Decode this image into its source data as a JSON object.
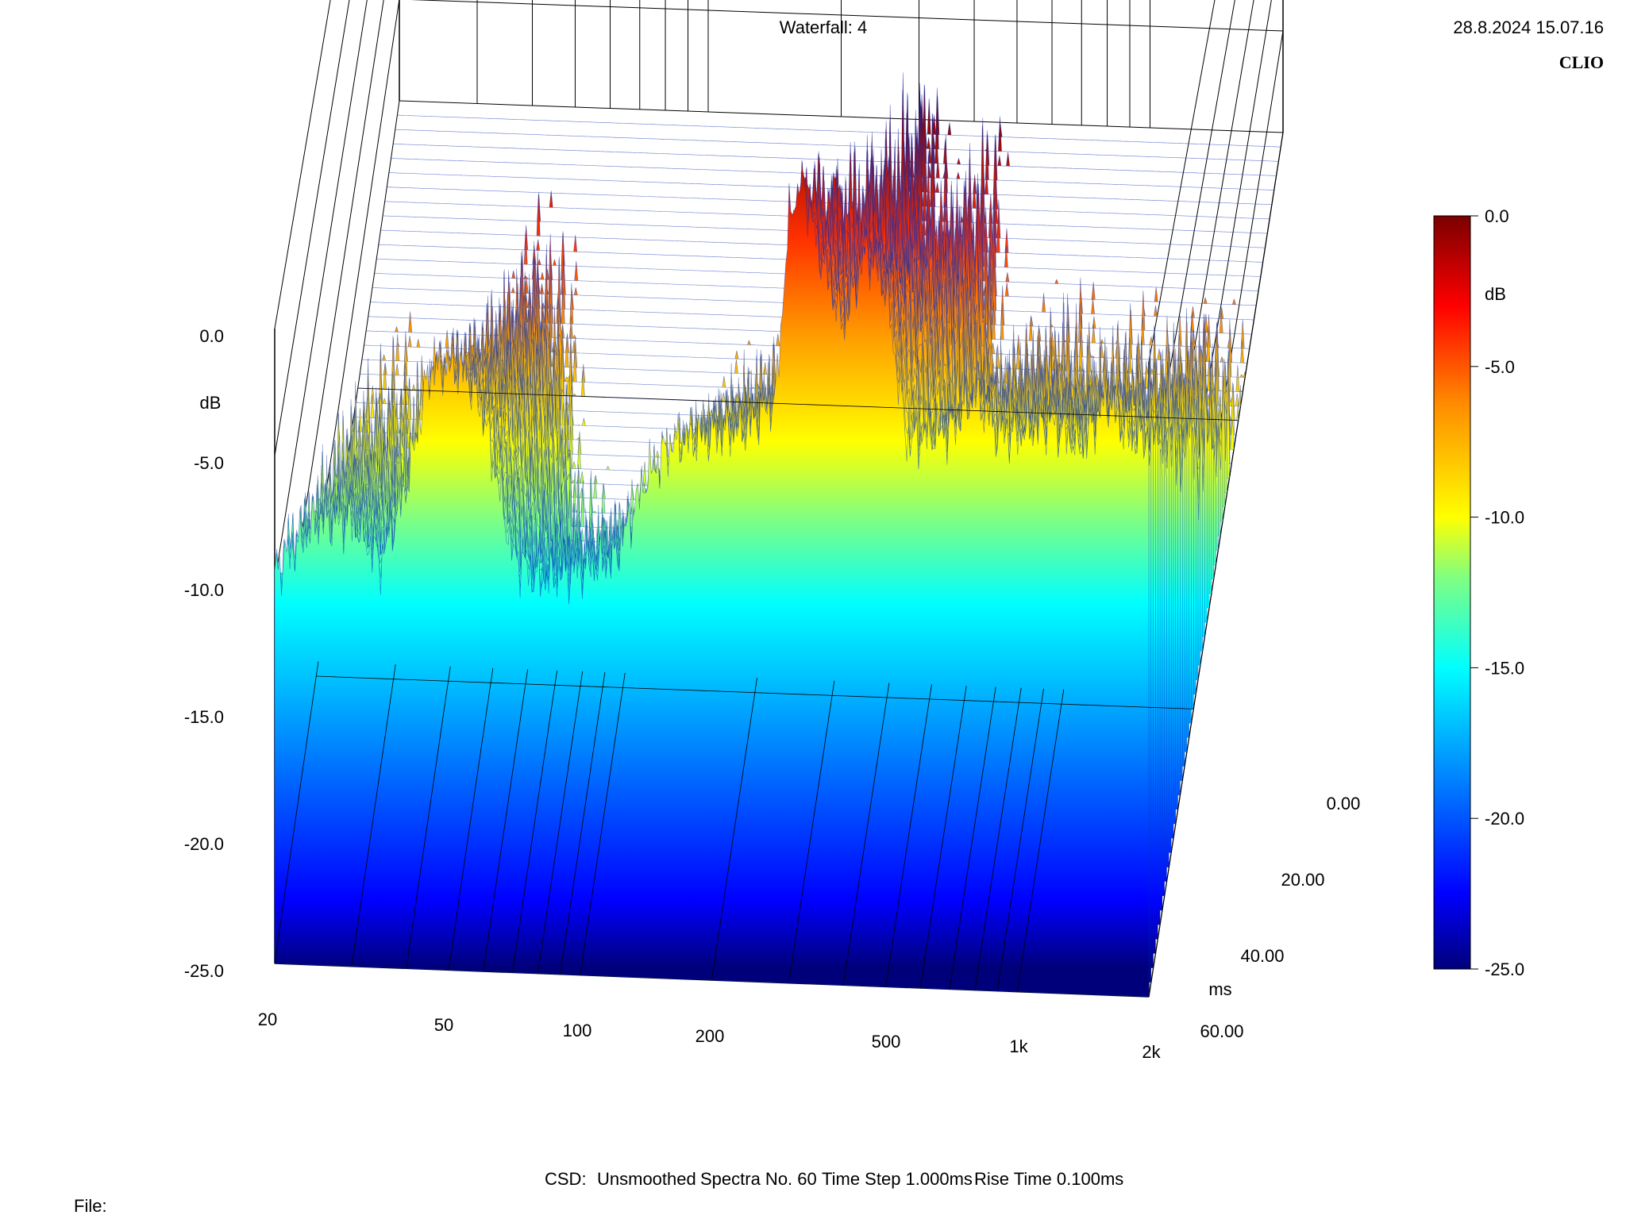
{
  "header": {
    "title": "Waterfall: 4",
    "timestamp": "28.8.2024 15.07.16",
    "brand": "CLIO"
  },
  "footer": {
    "info_csd": "CSD:",
    "info_smoothing": "Unsmoothed",
    "info_spectra": "Spectra No. 60",
    "info_timestep": "Time Step 1.000ms",
    "info_risetime": "Rise Time 0.100ms",
    "file_label": "File:"
  },
  "chart_data": {
    "type": "waterfall",
    "z_axis": {
      "label": "dB",
      "ticks": [
        "0.0",
        "-5.0",
        "-10.0",
        "-15.0",
        "-20.0",
        "-25.0"
      ],
      "range": [
        -25,
        0
      ]
    },
    "x_axis": {
      "scale": "log",
      "ticks": [
        "20",
        "50",
        "100",
        "200",
        "500",
        "1k",
        "2k"
      ],
      "range": [
        20,
        2000
      ]
    },
    "time_axis": {
      "label": "ms",
      "ticks": [
        "0.00",
        "20.00",
        "40.00",
        "60.00"
      ],
      "range": [
        0,
        60
      ]
    },
    "colorbar": {
      "label": "dB",
      "ticks": [
        "0.0",
        "-5.0",
        "-10.0",
        "-15.0",
        "-20.0",
        "-25.0"
      ],
      "range": [
        -25,
        0
      ],
      "colors": [
        "#7a0000",
        "#ff0000",
        "#ff8c00",
        "#ffff00",
        "#00ffff",
        "#0080ff",
        "#0000ff",
        "#00007a"
      ]
    },
    "front_spectrum_db": [
      [
        20,
        -9.5
      ],
      [
        25,
        -7.5
      ],
      [
        30,
        -7.5
      ],
      [
        35,
        -9
      ],
      [
        40,
        -6
      ],
      [
        45,
        -1.5
      ],
      [
        50,
        -1.2
      ],
      [
        55,
        -1.5
      ],
      [
        60,
        -3
      ],
      [
        70,
        -8.5
      ],
      [
        80,
        -9.5
      ],
      [
        100,
        -9
      ],
      [
        120,
        -8.5
      ],
      [
        140,
        -5.5
      ],
      [
        160,
        -4
      ],
      [
        200,
        -3.5
      ],
      [
        240,
        -3.2
      ],
      [
        280,
        -2
      ],
      [
        300,
        5
      ],
      [
        320,
        7
      ],
      [
        350,
        4
      ],
      [
        400,
        1
      ],
      [
        450,
        4
      ],
      [
        500,
        2.5
      ],
      [
        560,
        -3.5
      ],
      [
        700,
        -3
      ],
      [
        800,
        -1.5
      ],
      [
        900,
        -3
      ],
      [
        1000,
        -3
      ],
      [
        1200,
        -2.5
      ],
      [
        1400,
        -3.5
      ],
      [
        1600,
        -1.5
      ],
      [
        1800,
        -3
      ],
      [
        2000,
        -3
      ]
    ],
    "n_spectra": 60,
    "time_step_ms": 1.0
  }
}
